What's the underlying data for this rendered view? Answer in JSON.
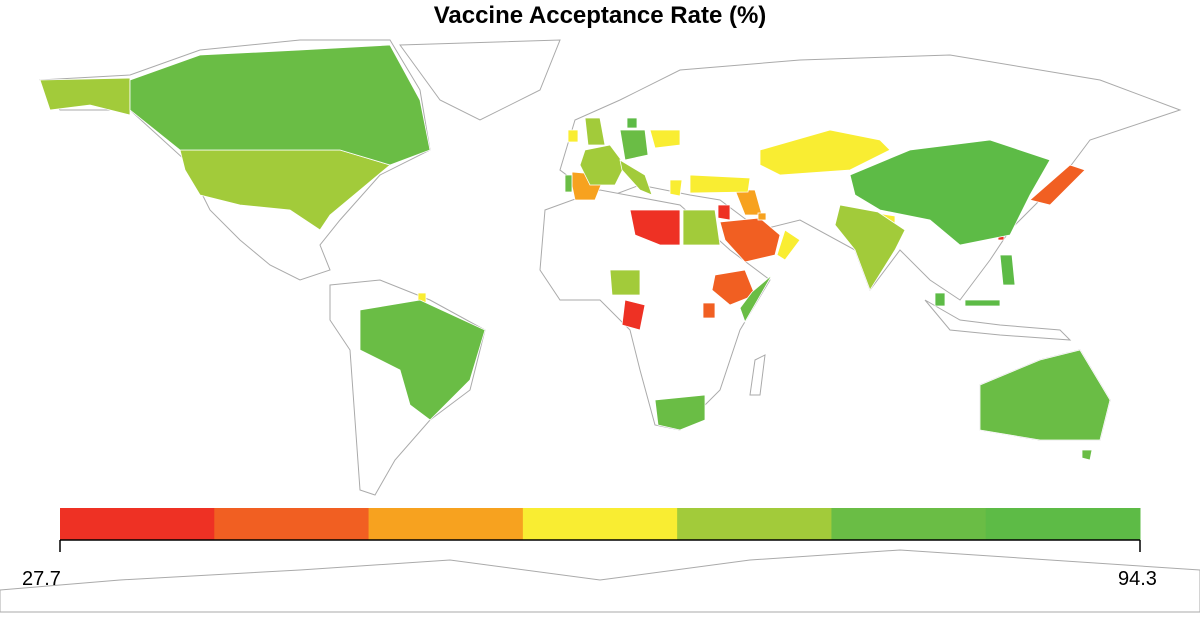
{
  "chart_data": {
    "type": "choropleth",
    "title": "Vaccine Acceptance Rate (%)",
    "legend": {
      "min_label": "27.7",
      "max_label": "94.3",
      "range": [
        27.7,
        94.3
      ],
      "bins": 7,
      "colors": [
        "#EE3124",
        "#F15F22",
        "#F7A21F",
        "#F9ED32",
        "#A2CB3A",
        "#6ABD45",
        "#5DBB46"
      ],
      "placement": "bottom"
    },
    "countries": [
      {
        "name": "Libya",
        "value": 32
      },
      {
        "name": "Jordan",
        "value": 32
      },
      {
        "name": "Republic of the Congo",
        "value": 32
      },
      {
        "name": "Taiwan",
        "value": 33
      },
      {
        "name": "Saudi Arabia",
        "value": 42
      },
      {
        "name": "Ethiopia",
        "value": 42
      },
      {
        "name": "Uganda",
        "value": 42
      },
      {
        "name": "Japan",
        "value": 42
      },
      {
        "name": "Spain",
        "value": 51
      },
      {
        "name": "Iraq",
        "value": 51
      },
      {
        "name": "Kuwait",
        "value": 51
      },
      {
        "name": "Poland",
        "value": 61
      },
      {
        "name": "Turkey",
        "value": 61
      },
      {
        "name": "Greece",
        "value": 61
      },
      {
        "name": "Kazakhstan",
        "value": 61
      },
      {
        "name": "Oman",
        "value": 61
      },
      {
        "name": "Ireland",
        "value": 61
      },
      {
        "name": "Bangladesh",
        "value": 61
      },
      {
        "name": "French Guiana",
        "value": 61
      },
      {
        "name": "United States",
        "value": 70
      },
      {
        "name": "France",
        "value": 70
      },
      {
        "name": "United Kingdom",
        "value": 70
      },
      {
        "name": "Italy",
        "value": 70
      },
      {
        "name": "Egypt",
        "value": 70
      },
      {
        "name": "India",
        "value": 70
      },
      {
        "name": "Nigeria",
        "value": 70
      },
      {
        "name": "Canada",
        "value": 80
      },
      {
        "name": "Brazil",
        "value": 80
      },
      {
        "name": "China",
        "value": 89
      },
      {
        "name": "Germany",
        "value": 80
      },
      {
        "name": "Denmark",
        "value": 89
      },
      {
        "name": "Portugal",
        "value": 80
      },
      {
        "name": "South Africa",
        "value": 80
      },
      {
        "name": "Australia",
        "value": 80
      },
      {
        "name": "Somalia",
        "value": 80
      },
      {
        "name": "Malaysia",
        "value": 89
      },
      {
        "name": "Philippines",
        "value": 89
      }
    ]
  }
}
